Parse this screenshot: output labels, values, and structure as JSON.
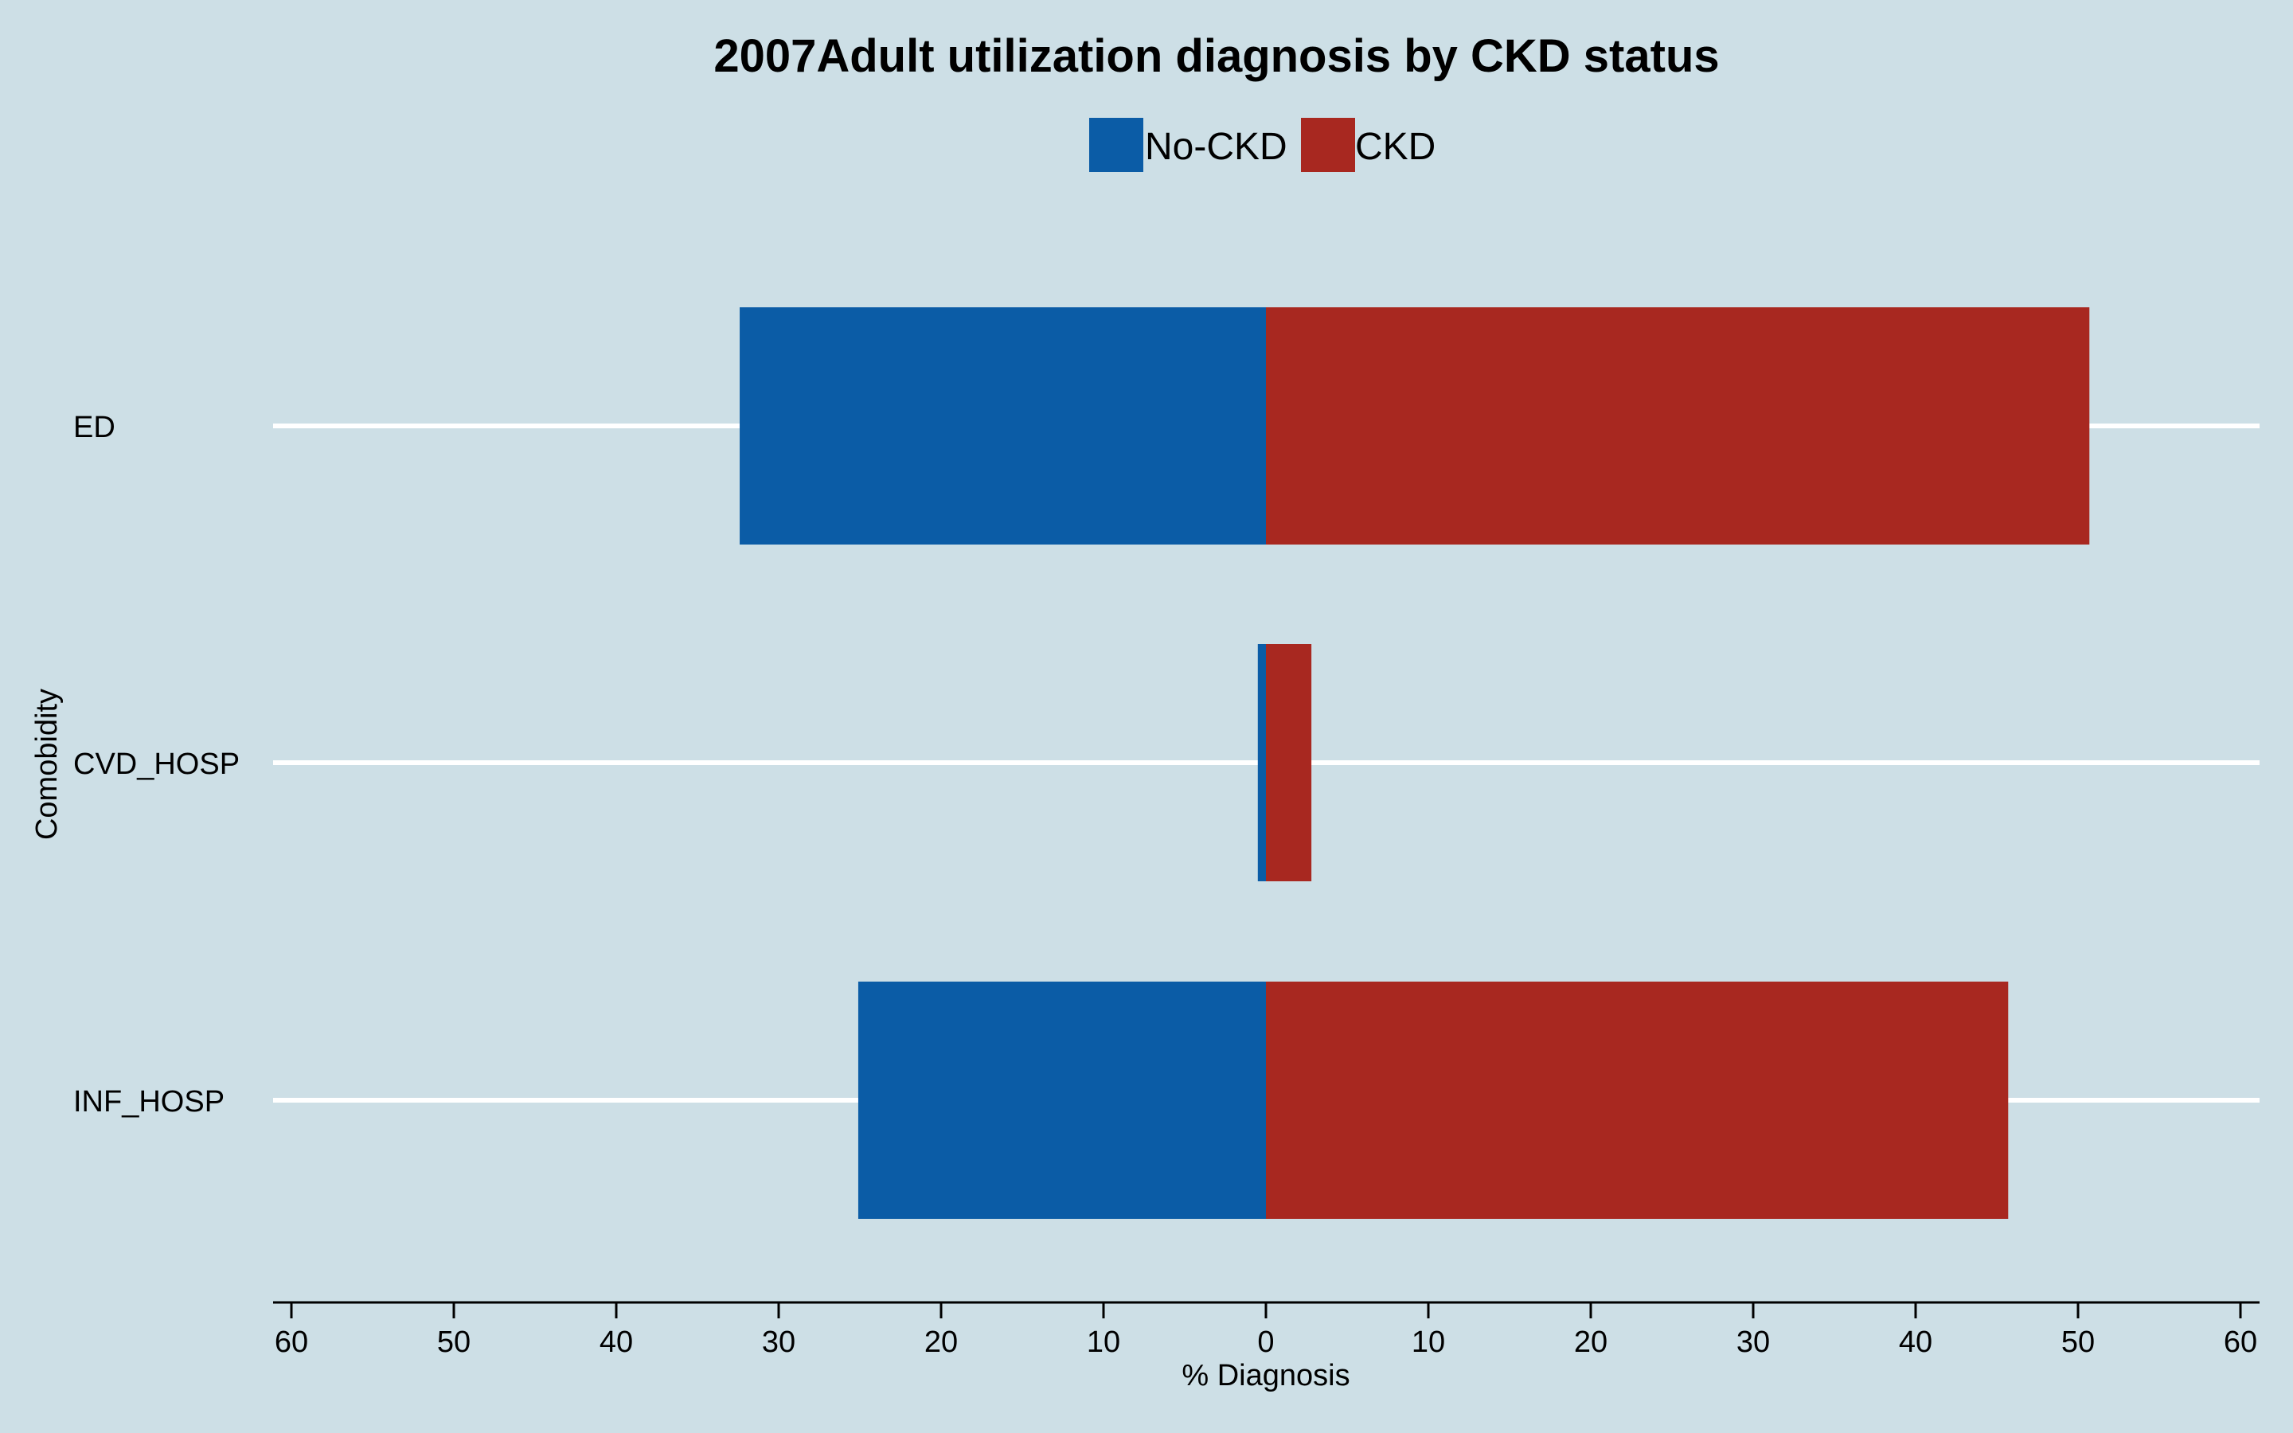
{
  "chart_data": {
    "type": "bar",
    "orientation": "horizontal",
    "layout": "diverging",
    "title": "2007Adult utilization diagnosis by CKD status",
    "xlabel": "% Diagnosis",
    "ylabel": "Comobidity",
    "categories": [
      "ED",
      "CVD_HOSP",
      "INF_HOSP"
    ],
    "series": [
      {
        "name": "No-CKD",
        "color": "#0b5ca6",
        "side": "left",
        "values": [
          32.4,
          0.5,
          25.1
        ]
      },
      {
        "name": "CKD",
        "color": "#a82820",
        "side": "right",
        "values": [
          50.7,
          2.8,
          45.7
        ]
      }
    ],
    "xlim": [
      -60,
      60
    ],
    "xticks": [
      -60,
      -50,
      -40,
      -30,
      -20,
      -10,
      0,
      10,
      20,
      30,
      40,
      50,
      60
    ],
    "xtick_labels": [
      "60",
      "50",
      "40",
      "30",
      "20",
      "10",
      "0",
      "10",
      "20",
      "30",
      "40",
      "50",
      "60"
    ],
    "grid": "horizontal gridlines at category positions (white)",
    "legend_position": "top-center",
    "background_color": "#cddfe6"
  }
}
